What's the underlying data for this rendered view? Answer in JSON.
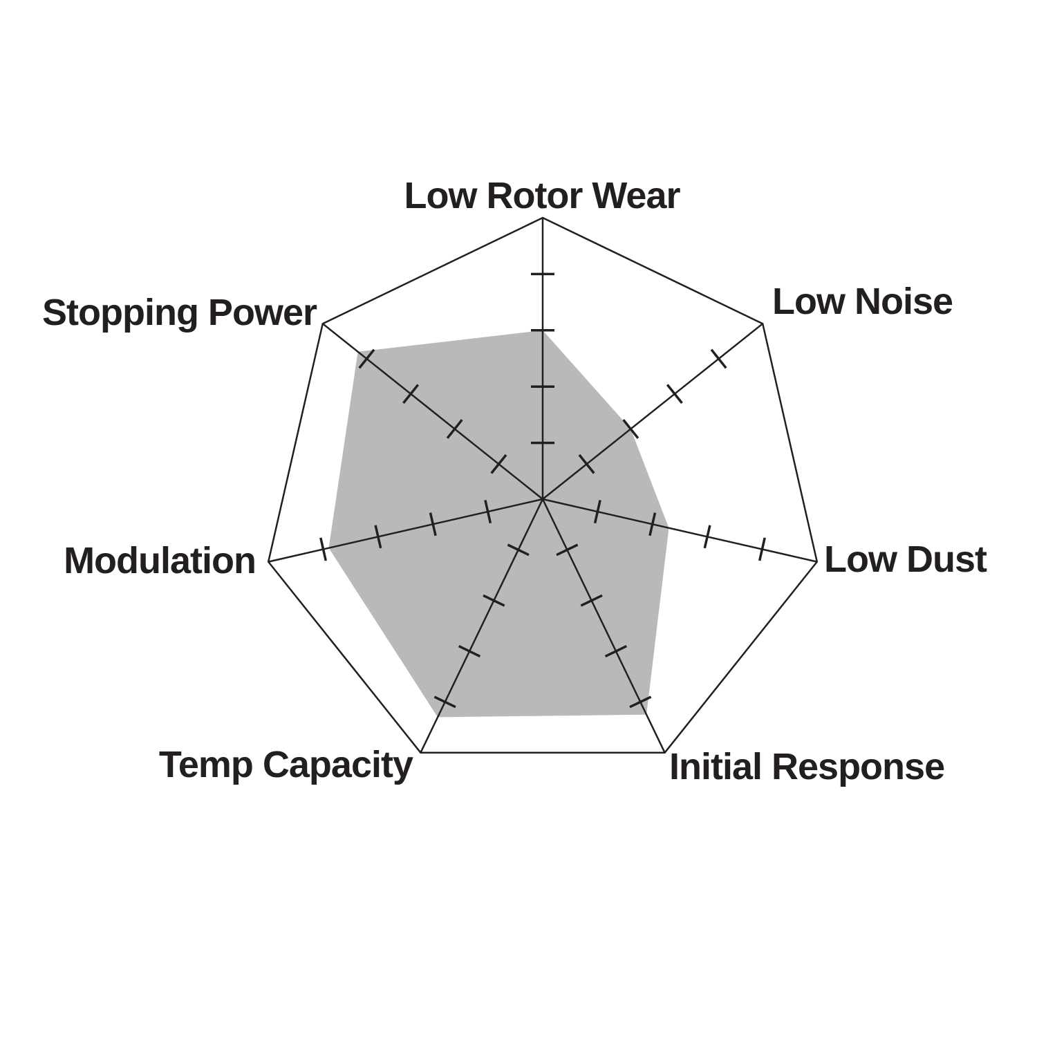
{
  "figure": {
    "background_color": "#ffffff"
  },
  "chart_data": {
    "type": "radar",
    "categories": [
      "Low Rotor Wear",
      "Low Noise",
      "Low Dust",
      "Initial Response",
      "Temp Capacity",
      "Modulation",
      "Stopping Power"
    ],
    "values": [
      3.0,
      2.0,
      2.3,
      4.25,
      4.3,
      3.9,
      4.2
    ],
    "axis_range": [
      0,
      5
    ],
    "tick_positions": [
      1,
      2,
      3,
      4
    ],
    "title": "",
    "legend": "none",
    "grid": "spokes-with-perpendicular-ticks",
    "outline_shape": "heptagon",
    "fill_color": "#b9b9b9",
    "line_color": "#231f20",
    "label_color": "#231f20"
  }
}
